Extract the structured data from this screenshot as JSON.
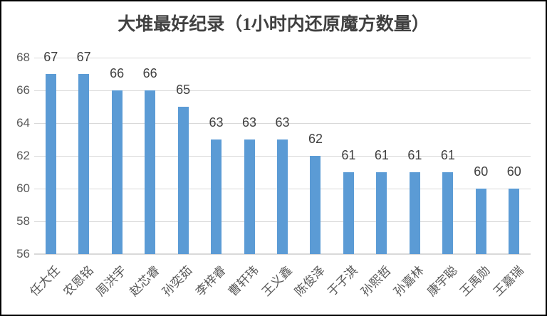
{
  "chart_data": {
    "type": "bar",
    "title": "大堆最好纪录（1小时内还原魔方数量）",
    "categories": [
      "任大任",
      "农恩铭",
      "周洪宇",
      "赵芯睿",
      "孙奕茹",
      "李梓睿",
      "曹轩玮",
      "王义鑫",
      "陈俊泽",
      "于子淇",
      "孙熙哲",
      "孙嘉林",
      "康宇聪",
      "王禹勋",
      "王嘉瑞"
    ],
    "values": [
      67,
      67,
      66,
      66,
      65,
      63,
      63,
      63,
      62,
      61,
      61,
      61,
      61,
      60,
      60
    ],
    "xlabel": "",
    "ylabel": "",
    "ylim": [
      56,
      68
    ],
    "yticks": [
      56,
      58,
      60,
      62,
      64,
      66,
      68
    ],
    "grid": true,
    "legend_position": "none",
    "data_labels": true,
    "colors": {
      "bar": "#5B9BD5",
      "gridline": "#D9D9D9",
      "axis_labels": "#595959",
      "value_labels": "#404040",
      "title": "#404040",
      "background": "#FFFFFF",
      "border": "#000000"
    }
  }
}
